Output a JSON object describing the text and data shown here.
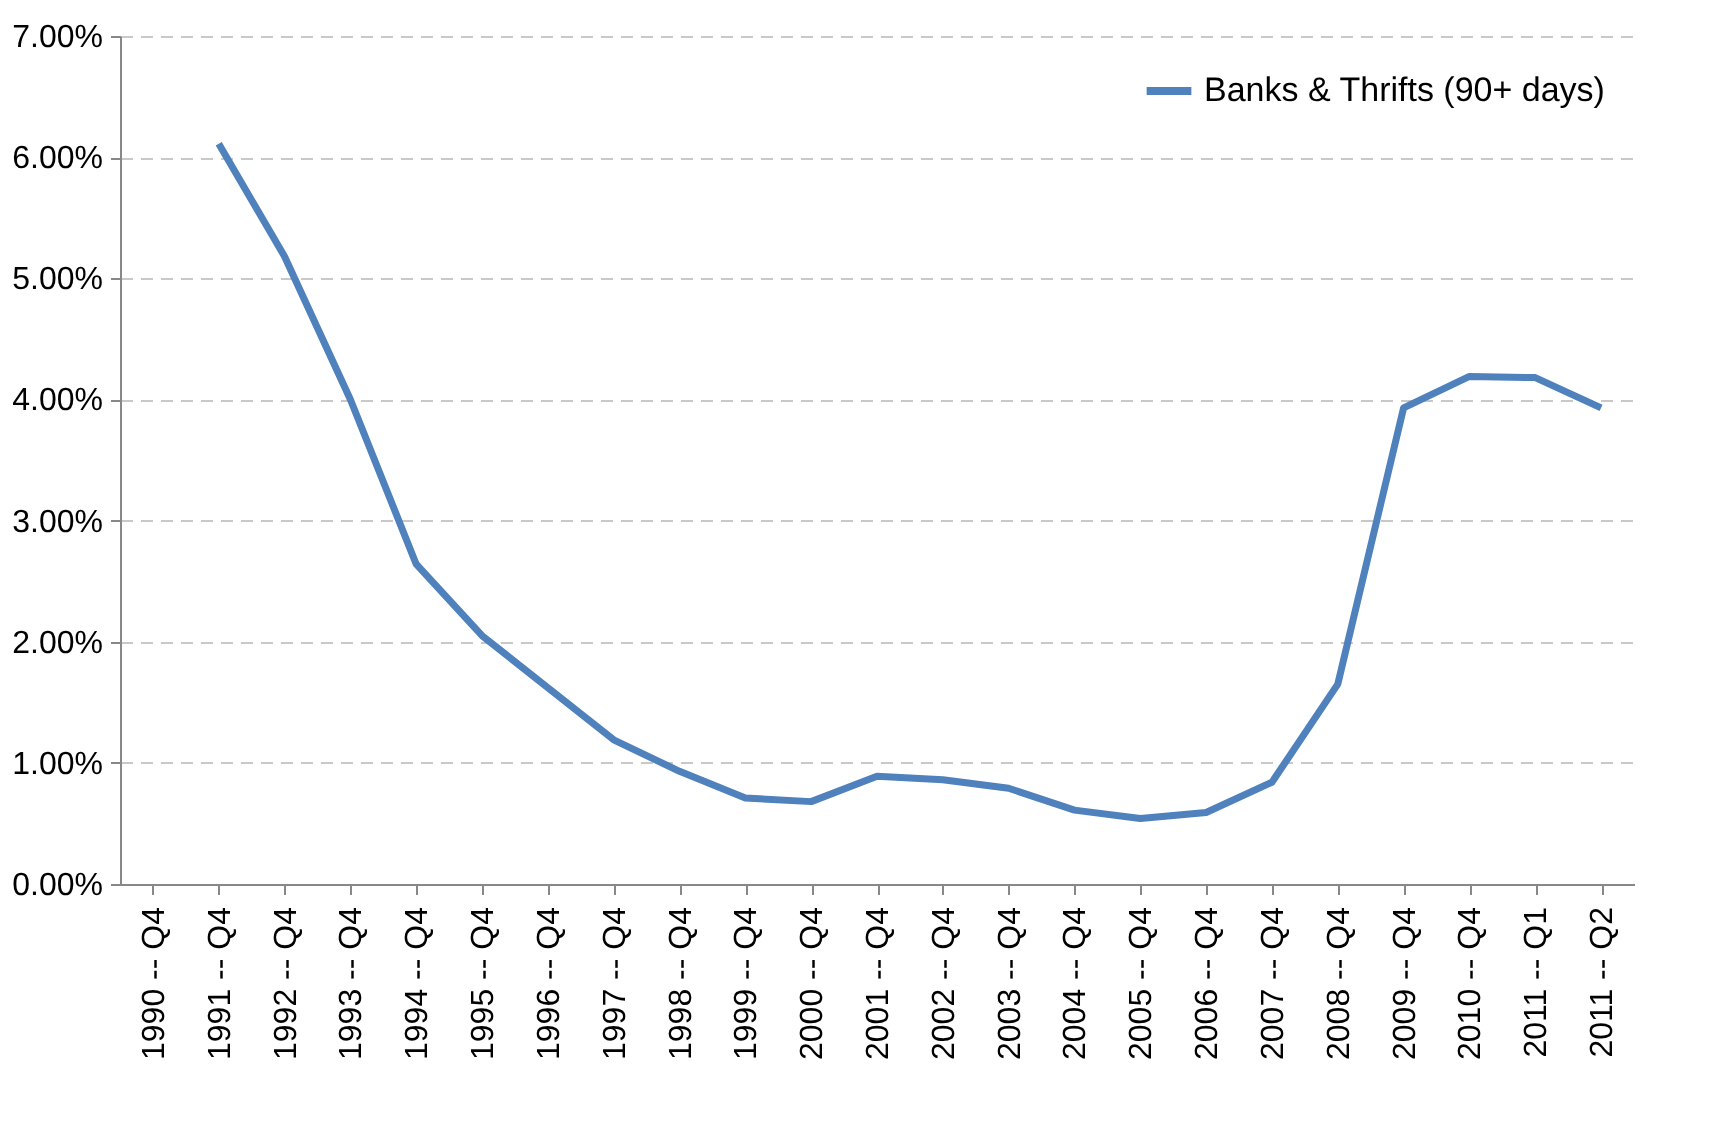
{
  "chart_data": {
    "type": "line",
    "categories": [
      "1990 -- Q4",
      "1991 -- Q4",
      "1992 -- Q4",
      "1993 -- Q4",
      "1994 -- Q4",
      "1995 -- Q4",
      "1996 -- Q4",
      "1997 -- Q4",
      "1998 -- Q4",
      "1999 -- Q4",
      "2000 -- Q4",
      "2001 -- Q4",
      "2002 -- Q4",
      "2003 -- Q4",
      "2004 -- Q4",
      "2005 -- Q4",
      "2006 -- Q4",
      "2007 -- Q4",
      "2008 -- Q4",
      "2009 -- Q4",
      "2010 -- Q4",
      "2011 -- Q1",
      "2011 -- Q2"
    ],
    "series": [
      {
        "name": "Banks & Thrifts (90+ days)",
        "color": "#4f81bd",
        "values": [
          null,
          6.11,
          5.18,
          4.0,
          2.64,
          2.05,
          1.62,
          1.19,
          0.93,
          0.71,
          0.68,
          0.89,
          0.86,
          0.79,
          0.61,
          0.54,
          0.59,
          0.84,
          1.65,
          3.93,
          4.19,
          4.18,
          3.93
        ]
      }
    ],
    "ylim": [
      0,
      7
    ],
    "yticks": [
      {
        "value": 0,
        "label": "0.00%"
      },
      {
        "value": 1,
        "label": "1.00%"
      },
      {
        "value": 2,
        "label": "2.00%"
      },
      {
        "value": 3,
        "label": "3.00%"
      },
      {
        "value": 4,
        "label": "4.00%"
      },
      {
        "value": 5,
        "label": "5.00%"
      },
      {
        "value": 6,
        "label": "6.00%"
      },
      {
        "value": 7,
        "label": "7.00%"
      }
    ],
    "grid": "y",
    "legend": "top right",
    "marker": "none",
    "line_style": "solid"
  }
}
